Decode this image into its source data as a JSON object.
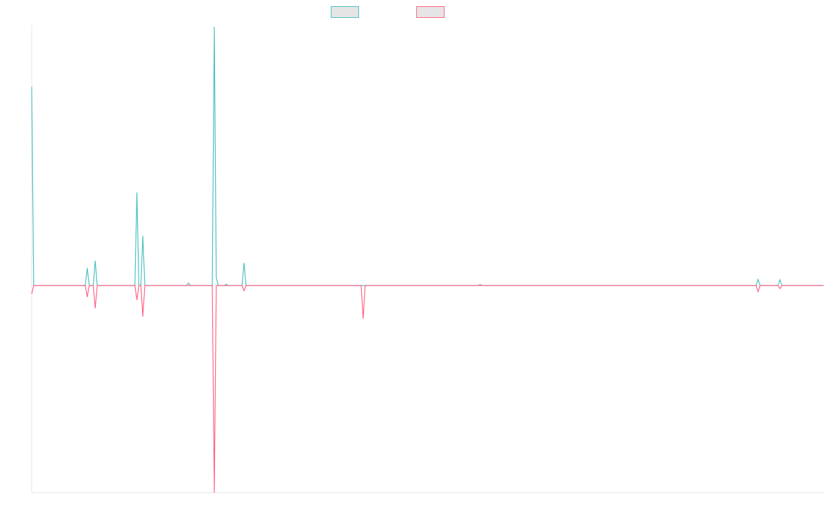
{
  "chart_data": {
    "type": "line",
    "grid": false,
    "legend_position": "top-center",
    "y_zero_at_fraction": 0.4426,
    "x_count": 400,
    "series": [
      {
        "color": "#4bc0c0",
        "fill": "#e5e5e5",
        "points": [
          [
            0,
            0.96
          ],
          [
            1,
            0
          ],
          [
            27,
            0
          ],
          [
            28,
            0.085
          ],
          [
            29,
            0
          ],
          [
            31,
            0
          ],
          [
            32,
            0.12
          ],
          [
            33,
            0
          ],
          [
            52,
            0
          ],
          [
            53,
            0.45
          ],
          [
            54,
            0
          ],
          [
            55,
            0
          ],
          [
            56,
            0.24
          ],
          [
            57,
            0
          ],
          [
            78,
            0
          ],
          [
            79,
            0.012
          ],
          [
            80,
            0
          ],
          [
            91,
            0
          ],
          [
            92,
            1.25
          ],
          [
            93,
            0.04
          ],
          [
            94,
            0
          ],
          [
            97,
            0
          ],
          [
            98,
            0.006
          ],
          [
            99,
            0
          ],
          [
            106,
            0
          ],
          [
            107,
            0.11
          ],
          [
            108,
            0
          ],
          [
            225,
            0
          ],
          [
            226,
            0.005
          ],
          [
            227,
            0
          ],
          [
            365,
            0
          ],
          [
            366,
            0.03
          ],
          [
            367,
            0
          ],
          [
            376,
            0
          ],
          [
            377,
            0.028
          ],
          [
            378,
            0
          ],
          [
            399,
            0
          ]
        ]
      },
      {
        "color": "#ff6384",
        "fill": "#e5e5e5",
        "points": [
          [
            0,
            -0.04
          ],
          [
            1,
            0
          ],
          [
            27,
            0
          ],
          [
            28,
            -0.055
          ],
          [
            29,
            0
          ],
          [
            31,
            0
          ],
          [
            32,
            -0.11
          ],
          [
            33,
            0
          ],
          [
            52,
            0
          ],
          [
            53,
            -0.07
          ],
          [
            54,
            0
          ],
          [
            55,
            0
          ],
          [
            56,
            -0.15
          ],
          [
            57,
            0
          ],
          [
            91,
            0
          ],
          [
            92,
            -1.0
          ],
          [
            93,
            0
          ],
          [
            106,
            0
          ],
          [
            107,
            -0.025
          ],
          [
            108,
            0
          ],
          [
            166,
            0
          ],
          [
            167,
            -0.16
          ],
          [
            168,
            0
          ],
          [
            365,
            0
          ],
          [
            366,
            -0.03
          ],
          [
            367,
            0
          ],
          [
            376,
            0
          ],
          [
            377,
            -0.015
          ],
          [
            378,
            0
          ],
          [
            399,
            0
          ]
        ]
      }
    ]
  }
}
